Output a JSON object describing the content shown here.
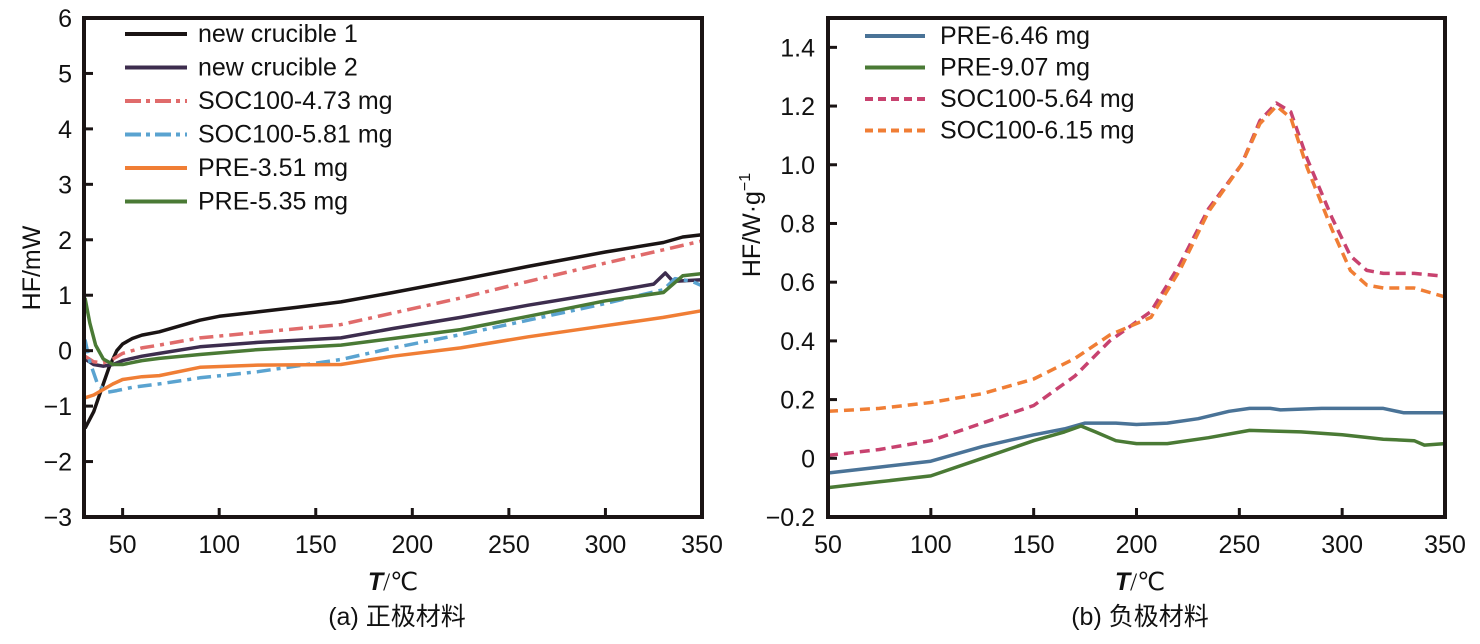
{
  "chart_data": [
    {
      "type": "line",
      "panel": "a",
      "caption": "(a) 正极材料",
      "xlabel_var": "T",
      "xlabel_unit": "/℃",
      "ylabel": "HF/mW",
      "xlim": [
        30,
        350
      ],
      "ylim": [
        -3,
        6
      ],
      "xticks": [
        50,
        100,
        150,
        200,
        250,
        300,
        350
      ],
      "yticks": [
        -3,
        -2,
        -1,
        0,
        1,
        2,
        3,
        4,
        5,
        6
      ],
      "ytick_labels": [
        "−3",
        "−2",
        "−1",
        "0",
        "1",
        "2",
        "3",
        "4",
        "5",
        "6"
      ],
      "grid": false,
      "legend_position": "top-left",
      "series": [
        {
          "name": "new crucible 1",
          "color": "#1a1414",
          "dash": "solid",
          "x": [
            30.5,
            35,
            40,
            43,
            47,
            50,
            55,
            60,
            69,
            80,
            90,
            100,
            120,
            140,
            163,
            190,
            225,
            260,
            300,
            330,
            340,
            350
          ],
          "y": [
            -1.4,
            -1.1,
            -0.6,
            -0.3,
            0.0,
            0.12,
            0.22,
            0.28,
            0.34,
            0.45,
            0.55,
            0.62,
            0.7,
            0.78,
            0.88,
            1.05,
            1.28,
            1.52,
            1.78,
            1.95,
            2.05,
            2.09
          ]
        },
        {
          "name": "new crucible 2",
          "color": "#3d2d4e",
          "dash": "solid",
          "x": [
            30.5,
            35,
            40,
            45,
            50,
            60,
            69,
            90,
            120,
            163,
            190,
            225,
            260,
            300,
            325,
            331,
            335,
            350
          ],
          "y": [
            -0.15,
            -0.25,
            -0.28,
            -0.25,
            -0.18,
            -0.1,
            -0.05,
            0.07,
            0.15,
            0.23,
            0.4,
            0.6,
            0.82,
            1.05,
            1.2,
            1.4,
            1.25,
            1.28
          ]
        },
        {
          "name": "SOC100-4.73 mg",
          "color": "#e06b6b",
          "dash": "dashdot",
          "x": [
            30.5,
            35,
            40,
            45,
            50,
            60,
            69,
            90,
            120,
            163,
            190,
            225,
            260,
            300,
            330,
            350
          ],
          "y": [
            -0.1,
            -0.2,
            -0.22,
            -0.15,
            -0.05,
            0.05,
            0.1,
            0.23,
            0.33,
            0.47,
            0.68,
            0.95,
            1.25,
            1.58,
            1.82,
            1.98
          ]
        },
        {
          "name": "SOC100-5.81 mg",
          "color": "#5aa3d0",
          "dash": "dashdot",
          "x": [
            30.5,
            33,
            37,
            42,
            47,
            55,
            69,
            90,
            120,
            163,
            190,
            225,
            260,
            300,
            330,
            336,
            345,
            350
          ],
          "y": [
            0.2,
            -0.2,
            -0.6,
            -0.75,
            -0.72,
            -0.66,
            -0.6,
            -0.49,
            -0.38,
            -0.16,
            0.05,
            0.29,
            0.55,
            0.85,
            1.1,
            1.3,
            1.25,
            1.17
          ]
        },
        {
          "name": "PRE-3.51 mg",
          "color": "#f07e35",
          "dash": "solid",
          "x": [
            30.5,
            35,
            40,
            45,
            50,
            60,
            69,
            90,
            120,
            163,
            190,
            225,
            260,
            300,
            330,
            350
          ],
          "y": [
            -0.85,
            -0.8,
            -0.7,
            -0.6,
            -0.52,
            -0.47,
            -0.45,
            -0.3,
            -0.26,
            -0.25,
            -0.1,
            0.05,
            0.25,
            0.45,
            0.6,
            0.72
          ]
        },
        {
          "name": "PRE-5.35 mg",
          "color": "#4a7a35",
          "dash": "solid",
          "x": [
            30.5,
            33,
            36,
            40,
            45,
            50,
            60,
            69,
            90,
            120,
            163,
            190,
            225,
            260,
            300,
            330,
            340,
            350
          ],
          "y": [
            0.95,
            0.5,
            0.1,
            -0.15,
            -0.25,
            -0.25,
            -0.18,
            -0.14,
            -0.07,
            0.02,
            0.1,
            0.22,
            0.38,
            0.62,
            0.9,
            1.05,
            1.35,
            1.39
          ]
        }
      ]
    },
    {
      "type": "line",
      "panel": "b",
      "caption": "(b) 负极材料",
      "xlabel_var": "T",
      "xlabel_unit": "/℃",
      "ylabel": "HF/W·g",
      "ylabel_sup": "−1",
      "xlim": [
        50,
        350
      ],
      "ylim": [
        -0.2,
        1.5
      ],
      "xticks": [
        50,
        100,
        150,
        200,
        250,
        300,
        350
      ],
      "yticks": [
        -0.2,
        0,
        0.2,
        0.4,
        0.6,
        0.8,
        1.0,
        1.2,
        1.4
      ],
      "ytick_labels": [
        "−0.2",
        "0",
        "0.2",
        "0.4",
        "0.6",
        "0.8",
        "1.0",
        "1.2",
        "1.4"
      ],
      "grid": false,
      "legend_position": "top-left",
      "series": [
        {
          "name": "PRE-6.46 mg",
          "color": "#4a7397",
          "dash": "solid",
          "x": [
            50,
            75,
            100,
            125,
            150,
            165,
            175,
            190,
            200,
            215,
            230,
            245,
            255,
            265,
            270,
            290,
            320,
            330,
            350
          ],
          "y": [
            -0.05,
            -0.03,
            -0.01,
            0.04,
            0.08,
            0.1,
            0.12,
            0.12,
            0.115,
            0.12,
            0.135,
            0.16,
            0.17,
            0.17,
            0.165,
            0.17,
            0.17,
            0.155,
            0.155
          ]
        },
        {
          "name": "PRE-9.07 mg",
          "color": "#4a7a35",
          "dash": "solid",
          "x": [
            50,
            75,
            100,
            125,
            150,
            165,
            173,
            180,
            190,
            200,
            215,
            235,
            255,
            280,
            300,
            320,
            335,
            340,
            350
          ],
          "y": [
            -0.1,
            -0.08,
            -0.06,
            0.0,
            0.06,
            0.09,
            0.11,
            0.09,
            0.06,
            0.05,
            0.05,
            0.07,
            0.095,
            0.09,
            0.08,
            0.065,
            0.06,
            0.045,
            0.05
          ]
        },
        {
          "name": "SOC100-5.64 mg",
          "color": "#c8426f",
          "dash": "dash",
          "x": [
            50,
            75,
            100,
            125,
            150,
            170,
            187,
            207,
            221,
            235,
            251,
            260,
            268,
            275,
            283,
            295,
            304,
            312,
            320,
            335,
            350
          ],
          "y": [
            0.01,
            0.03,
            0.06,
            0.12,
            0.18,
            0.28,
            0.4,
            0.5,
            0.66,
            0.85,
            1.0,
            1.15,
            1.21,
            1.18,
            1.02,
            0.82,
            0.69,
            0.64,
            0.63,
            0.63,
            0.62
          ]
        },
        {
          "name": "SOC100-6.15 mg",
          "color": "#f07e35",
          "dash": "dash",
          "x": [
            50,
            75,
            100,
            125,
            150,
            170,
            187,
            207,
            221,
            235,
            251,
            260,
            268,
            275,
            283,
            295,
            304,
            312,
            320,
            335,
            350
          ],
          "y": [
            0.16,
            0.17,
            0.19,
            0.22,
            0.27,
            0.34,
            0.42,
            0.48,
            0.64,
            0.84,
            1.0,
            1.14,
            1.2,
            1.16,
            0.99,
            0.78,
            0.64,
            0.59,
            0.58,
            0.58,
            0.55
          ]
        }
      ]
    }
  ]
}
